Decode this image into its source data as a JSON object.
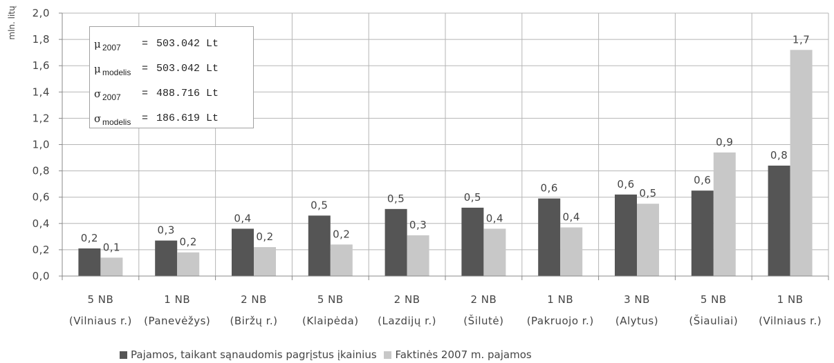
{
  "chart_data": {
    "type": "bar",
    "ylabel": "mln. litų",
    "ylim": [
      0,
      2.0
    ],
    "y_ticks": [
      "0,0",
      "0,2",
      "0,4",
      "0,6",
      "0,8",
      "1,0",
      "1,2",
      "1,4",
      "1,6",
      "1,8",
      "2,0"
    ],
    "grid": true,
    "legend_position": "bottom",
    "categories": [
      [
        "5 NB",
        "(Vilniaus r.)"
      ],
      [
        "1 NB",
        "(Panevėžys)"
      ],
      [
        "2 NB",
        "(Biržų r.)"
      ],
      [
        "5 NB",
        "(Klaipėda)"
      ],
      [
        "2 NB",
        "(Lazdijų r.)"
      ],
      [
        "2 NB",
        "(Šilutė)"
      ],
      [
        "1 NB",
        "(Pakruojo r.)"
      ],
      [
        "3 NB",
        "(Alytus)"
      ],
      [
        "5 NB",
        "(Šiauliai)"
      ],
      [
        "1 NB",
        "(Vilniaus r.)"
      ]
    ],
    "series": [
      {
        "name": "Pajamos, taikant sąnaudomis pagrįstus įkainius",
        "color": "#555555",
        "values": [
          0.21,
          0.27,
          0.36,
          0.46,
          0.51,
          0.52,
          0.59,
          0.62,
          0.65,
          0.84
        ],
        "labels": [
          "0,2",
          "0,3",
          "0,4",
          "0,5",
          "0,5",
          "0,5",
          "0,6",
          "0,6",
          "0,6",
          "0,8"
        ]
      },
      {
        "name": "Faktinės 2007 m. pajamos",
        "color": "#c8c8c8",
        "values": [
          0.14,
          0.18,
          0.22,
          0.24,
          0.31,
          0.36,
          0.37,
          0.55,
          0.94,
          1.72
        ],
        "labels": [
          "0,1",
          "0,2",
          "0,2",
          "0,2",
          "0,3",
          "0,4",
          "0,4",
          "0,5",
          "0,9",
          "1,7"
        ]
      }
    ],
    "annotation": [
      {
        "symbol": "μ",
        "sub": "2007",
        "eq": "=",
        "value": "503.042 Lt"
      },
      {
        "symbol": "μ",
        "sub": "modelis",
        "eq": "=",
        "value": "503.042 Lt"
      },
      {
        "symbol": "σ",
        "sub": "2007",
        "eq": "=",
        "value": "488.716 Lt"
      },
      {
        "symbol": "σ",
        "sub": "modelis",
        "eq": "=",
        "value": "186.619 Lt"
      }
    ]
  }
}
